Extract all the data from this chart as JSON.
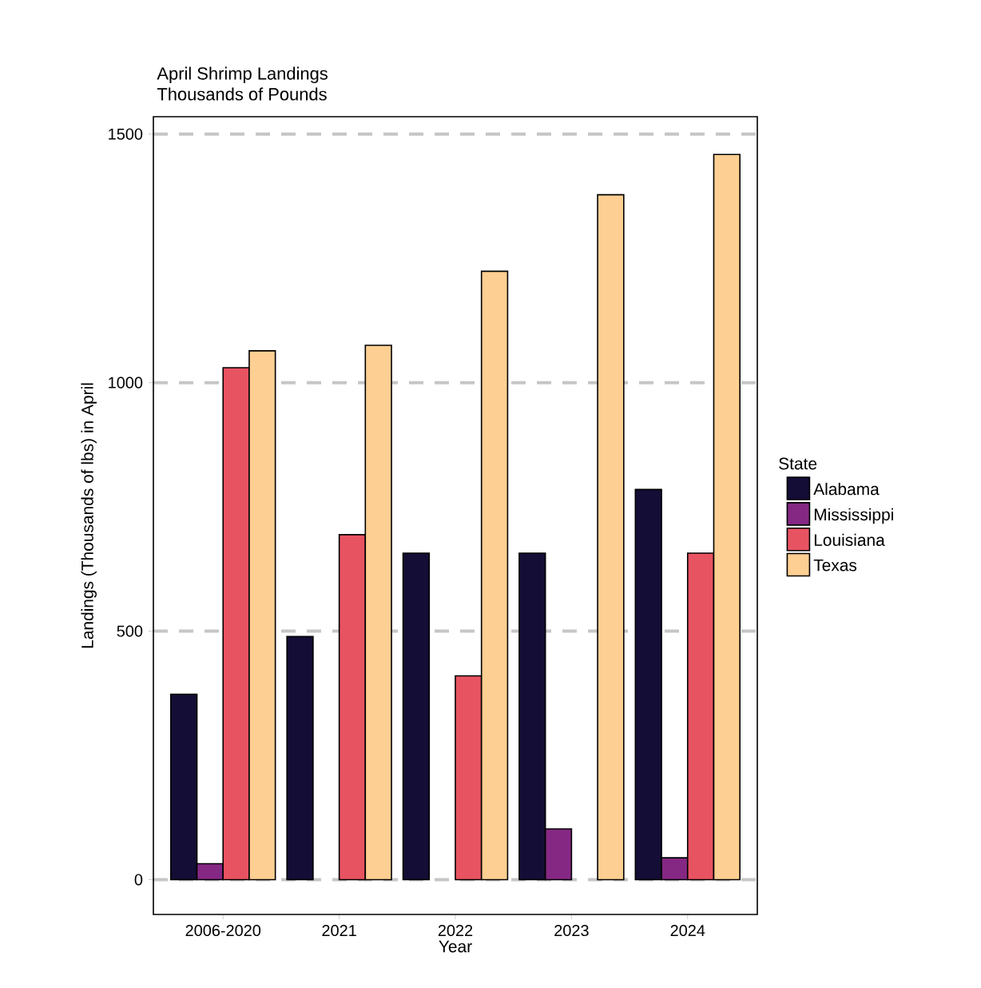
{
  "chart_data": {
    "type": "bar",
    "title": "April Shrimp Landings",
    "subtitle": "Thousands of Pounds",
    "xlabel": "Year",
    "ylabel": "Landings (Thousands of lbs) in April",
    "legend_title": "State",
    "categories": [
      "2006-2020",
      "2021",
      "2022",
      "2023",
      "2024"
    ],
    "series": [
      {
        "name": "Alabama",
        "color": "#140e36",
        "values": [
          373,
          489,
          657,
          657,
          785
        ]
      },
      {
        "name": "Mississippi",
        "color": "#852884",
        "values": [
          32,
          null,
          null,
          102,
          44
        ]
      },
      {
        "name": "Louisiana",
        "color": "#e85362",
        "values": [
          1030,
          694,
          410,
          null,
          657
        ]
      },
      {
        "name": "Texas",
        "color": "#fecf92",
        "values": [
          1064,
          1075,
          1224,
          1378,
          1459
        ]
      }
    ],
    "ylim": [
      -70,
      1535
    ],
    "yticks": [
      0,
      500,
      1000,
      1500
    ],
    "grid": "y",
    "legend": "right"
  }
}
